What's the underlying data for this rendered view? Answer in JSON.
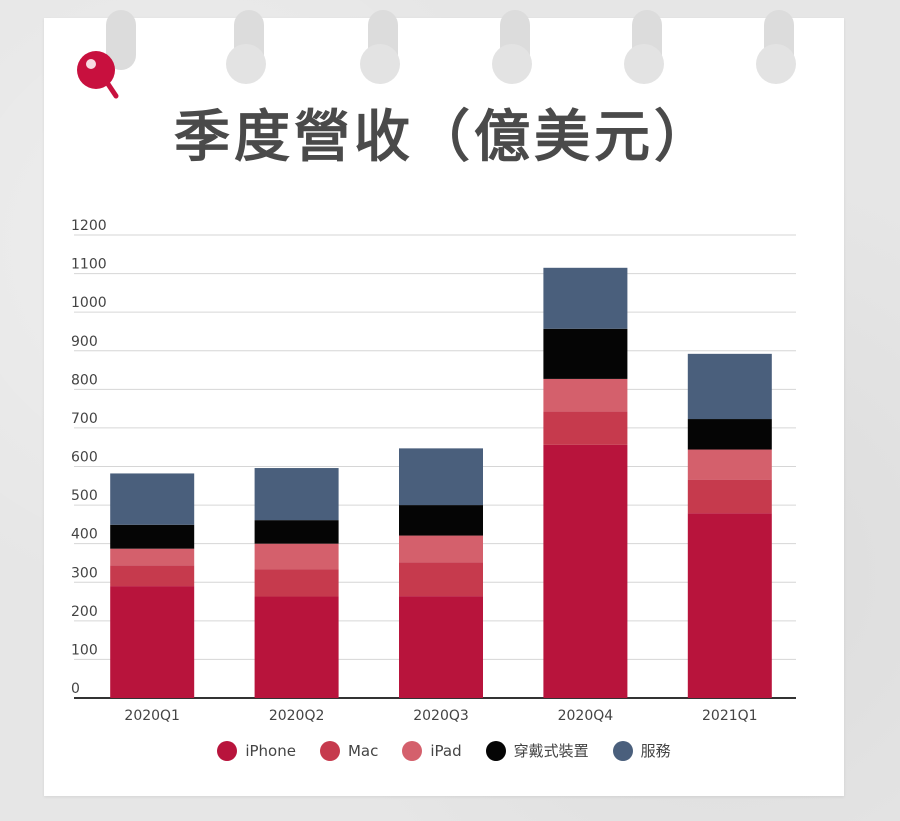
{
  "title": "季度營收（億美元）",
  "colors": {
    "iPhone": "#b8143c",
    "Mac": "#c63a4d",
    "iPad": "#d4606c",
    "wearables": "#050505",
    "services": "#4a5f7c"
  },
  "chart_data": {
    "type": "bar",
    "stacked": true,
    "categories": [
      "2020Q1",
      "2020Q2",
      "2020Q3",
      "2020Q4",
      "2021Q1"
    ],
    "series": [
      {
        "name": "iPhone",
        "values": [
          290,
          263,
          264,
          656,
          479
        ]
      },
      {
        "name": "Mac",
        "values": [
          54,
          71,
          88,
          87,
          87
        ]
      },
      {
        "name": "iPad",
        "values": [
          43,
          66,
          69,
          84,
          78
        ]
      },
      {
        "name": "穿戴式裝置",
        "values": [
          62,
          61,
          79,
          130,
          79
        ]
      },
      {
        "name": "服務",
        "values": [
          133,
          135,
          147,
          158,
          169
        ]
      }
    ],
    "yticks": [
      0,
      100,
      200,
      300,
      400,
      500,
      600,
      700,
      800,
      900,
      1000,
      1100,
      1200
    ],
    "ylim": [
      0,
      1200
    ],
    "grid": true,
    "legend": "bottom"
  }
}
